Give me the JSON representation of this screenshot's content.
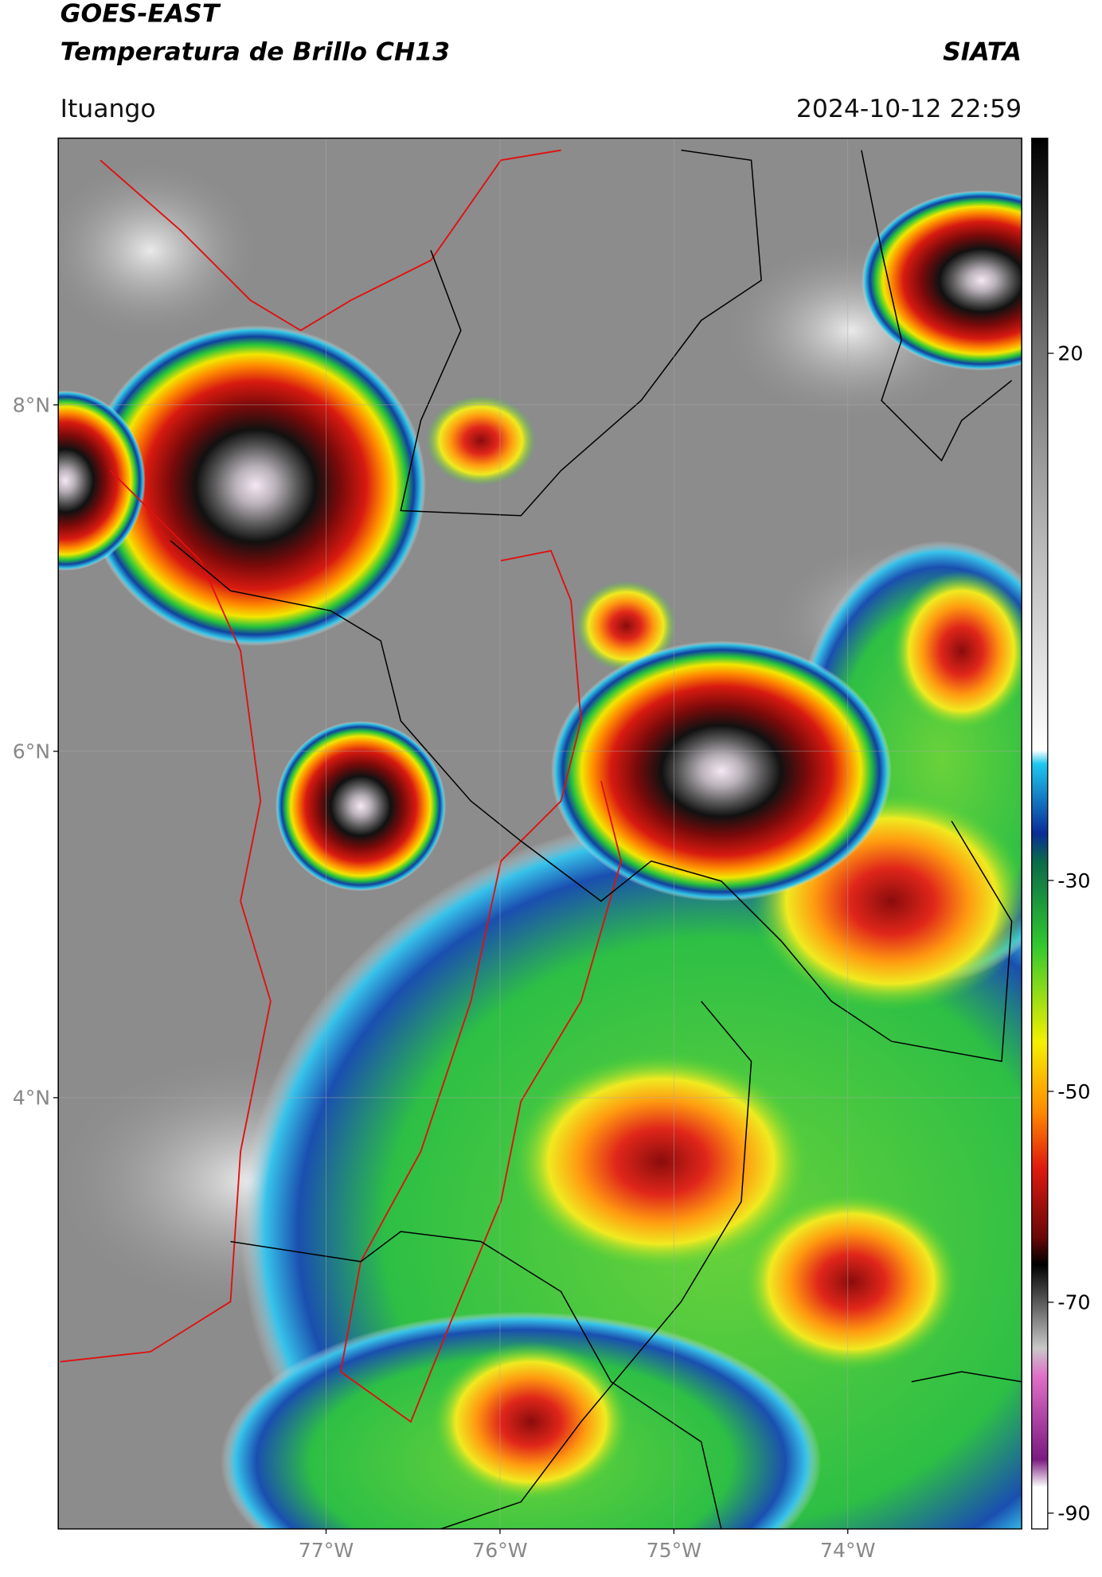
{
  "header": {
    "title": "GOES-EAST",
    "subtitle": "Temperatura de Brillo CH13",
    "source": "SIATA",
    "location": "Ituango",
    "datetime": "2024-10-12 22:59"
  },
  "map": {
    "xlim": [
      -78.54,
      -73.0
    ],
    "ylim": [
      1.51,
      9.54
    ],
    "xticks": [
      {
        "value": -77,
        "label": "77°W"
      },
      {
        "value": -76,
        "label": "76°W"
      },
      {
        "value": -75,
        "label": "75°W"
      },
      {
        "value": -74,
        "label": "74°W"
      }
    ],
    "yticks": [
      {
        "value": 8,
        "label": "8°N"
      },
      {
        "value": 6,
        "label": "6°N"
      },
      {
        "value": 4,
        "label": "4°N"
      }
    ],
    "grid": true
  },
  "colorbar": {
    "clim": [
      -91.5,
      40.4
    ],
    "ticks": [
      20,
      -30,
      -50,
      -70,
      -90
    ]
  }
}
